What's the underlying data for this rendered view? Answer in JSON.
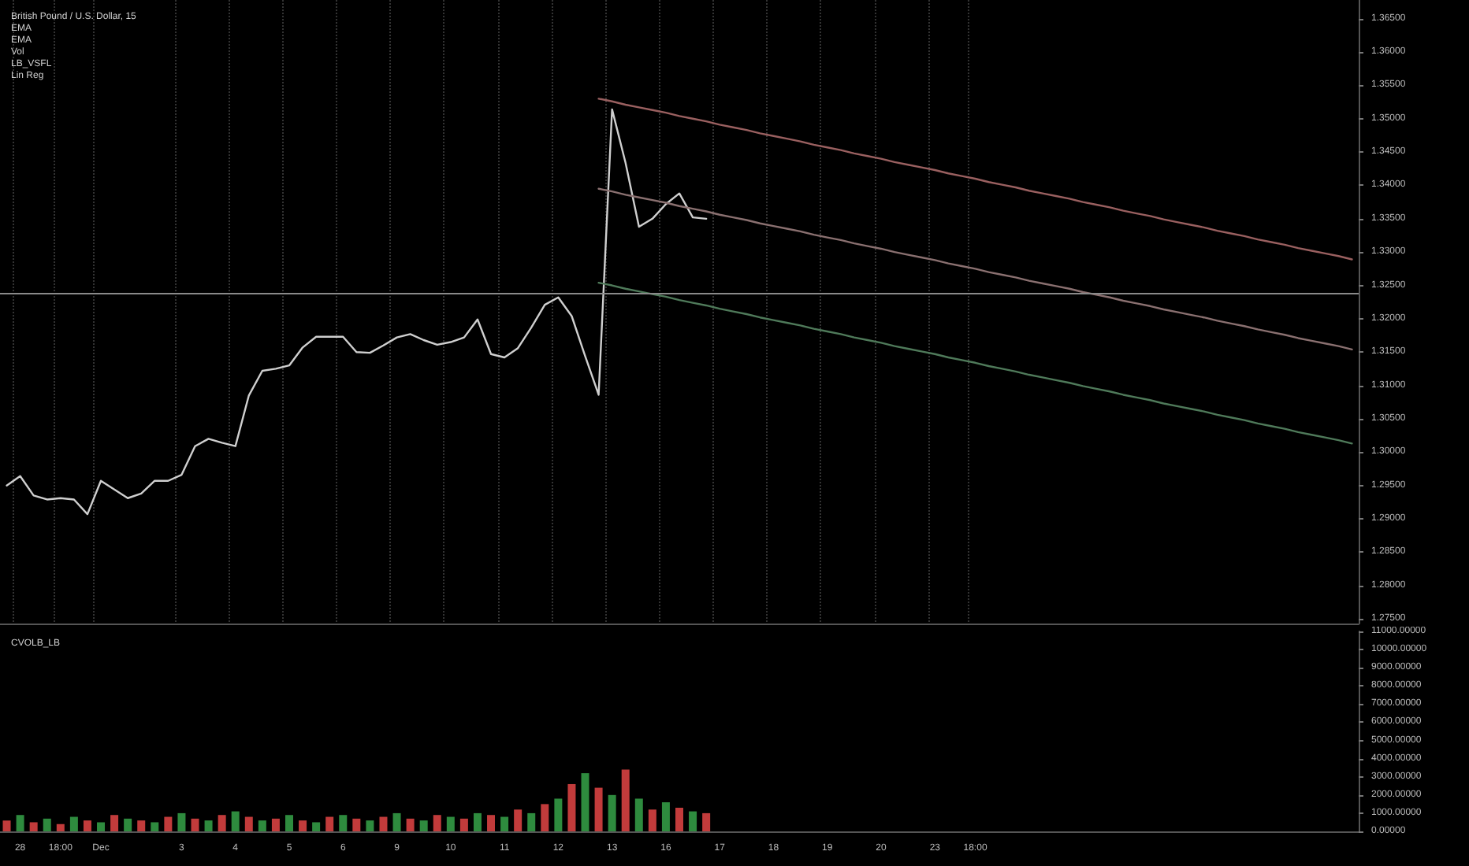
{
  "chart_data": [
    {
      "type": "line",
      "title": "British Pound / U.S. Dollar, 15",
      "annotations": [
        "EMA",
        "EMA",
        "Vol",
        "LB_VSFL",
        "Lin Reg"
      ],
      "categories": [
        null,
        null,
        null,
        null,
        null,
        null,
        null,
        null,
        null,
        null,
        null,
        null,
        null,
        null,
        null,
        null,
        null,
        null,
        null,
        null,
        null,
        null,
        null,
        null,
        null,
        null,
        null,
        null,
        null,
        null,
        null,
        null,
        null,
        null,
        null,
        null,
        null,
        null,
        null,
        null,
        null,
        null,
        null,
        null,
        null,
        null,
        null,
        null,
        null,
        null,
        null,
        null,
        null,
        null,
        null,
        null,
        null,
        null,
        null,
        null,
        null,
        null,
        null,
        null,
        null,
        null,
        null,
        null,
        null,
        null,
        null,
        null,
        null,
        null,
        null,
        null,
        null,
        null,
        null,
        null,
        null,
        null,
        null,
        null,
        null,
        null,
        null,
        null,
        null,
        null,
        null,
        null,
        null,
        null,
        null,
        null,
        null,
        null,
        null,
        null,
        null
      ],
      "ylim": [
        1.2743,
        1.3678
      ],
      "yticks": [
        {
          "value": 1.275,
          "label": "1.27500"
        },
        {
          "value": 1.28,
          "label": "1.28000"
        },
        {
          "value": 1.285,
          "label": "1.28500"
        },
        {
          "value": 1.29,
          "label": "1.29000"
        },
        {
          "value": 1.295,
          "label": "1.29500"
        },
        {
          "value": 1.3,
          "label": "1.30000"
        },
        {
          "value": 1.305,
          "label": "1.30500"
        },
        {
          "value": 1.31,
          "label": "1.31000"
        },
        {
          "value": 1.315,
          "label": "1.31500"
        },
        {
          "value": 1.32,
          "label": "1.32000"
        },
        {
          "value": 1.325,
          "label": "1.32500"
        },
        {
          "value": 1.33,
          "label": "1.33000"
        },
        {
          "value": 1.335,
          "label": "1.33500"
        },
        {
          "value": 1.34,
          "label": "1.34000"
        },
        {
          "value": 1.345,
          "label": "1.34500"
        },
        {
          "value": 1.35,
          "label": "1.35000"
        },
        {
          "value": 1.355,
          "label": "1.35500"
        },
        {
          "value": 1.36,
          "label": "1.36000"
        },
        {
          "value": 1.365,
          "label": "1.36500"
        }
      ],
      "tick_labels": "y",
      "grid": "x",
      "legend": false,
      "line_style": "solid",
      "ref_lines": [
        {
          "axis": "y",
          "value": 1.3239,
          "color": "#8a8a8a"
        }
      ],
      "series": [
        {
          "color": "#cfcfcf",
          "values": [
            1.295,
            1.2964,
            1.2935,
            1.2929,
            1.2931,
            1.2929,
            1.2907,
            1.2957,
            1.2944,
            1.2931,
            1.2938,
            1.2957,
            1.2957,
            1.2966,
            1.3009,
            1.302,
            1.3014,
            1.3009,
            1.3085,
            1.3122,
            1.3125,
            1.313,
            1.3157,
            1.3173,
            1.3173,
            1.3173,
            1.315,
            1.3149,
            1.316,
            1.3172,
            1.3177,
            1.3168,
            1.3161,
            1.3165,
            1.3172,
            1.3199,
            1.3147,
            1.3142,
            1.3156,
            1.3187,
            1.3221,
            1.3232,
            1.3204,
            1.3144,
            1.3086,
            1.3514,
            1.3434,
            1.3338,
            1.335,
            1.3372,
            1.3388,
            1.3352,
            1.335,
            null,
            null,
            null,
            null,
            null,
            null,
            null,
            null,
            null,
            null,
            null,
            null,
            null,
            null,
            null,
            null,
            null,
            null,
            null,
            null,
            null,
            null,
            null,
            null,
            null,
            null,
            null,
            null,
            null,
            null,
            null,
            null,
            null,
            null,
            null,
            null,
            null,
            null,
            null,
            null,
            null,
            null,
            null,
            null,
            null,
            null,
            null,
            null
          ]
        },
        {
          "color": "#9a6060",
          "values": [
            null,
            null,
            null,
            null,
            null,
            null,
            null,
            null,
            null,
            null,
            null,
            null,
            null,
            null,
            null,
            null,
            null,
            null,
            null,
            null,
            null,
            null,
            null,
            null,
            null,
            null,
            null,
            null,
            null,
            null,
            null,
            null,
            null,
            null,
            null,
            null,
            null,
            null,
            null,
            null,
            null,
            null,
            null,
            null,
            1.353,
            1.3526,
            1.3521,
            1.3517,
            1.3513,
            1.3509,
            1.3504,
            1.35,
            1.3496,
            1.3491,
            1.3487,
            1.3483,
            1.3478,
            1.3474,
            1.347,
            1.3466,
            1.3461,
            1.3457,
            1.3453,
            1.3448,
            1.3444,
            1.344,
            1.3435,
            1.3431,
            1.3427,
            1.3423,
            1.3418,
            1.3414,
            1.341,
            1.3405,
            1.3401,
            1.3397,
            1.3392,
            1.3388,
            1.3384,
            1.338,
            1.3375,
            1.3371,
            1.3367,
            1.3362,
            1.3358,
            1.3354,
            1.3349,
            1.3345,
            1.3341,
            1.3337,
            1.3332,
            1.3328,
            1.3324,
            1.3319,
            1.3315,
            1.3311,
            1.3306,
            1.3302,
            1.3298,
            1.3294,
            1.3289
          ]
        },
        {
          "color": "#8a7070",
          "values": [
            null,
            null,
            null,
            null,
            null,
            null,
            null,
            null,
            null,
            null,
            null,
            null,
            null,
            null,
            null,
            null,
            null,
            null,
            null,
            null,
            null,
            null,
            null,
            null,
            null,
            null,
            null,
            null,
            null,
            null,
            null,
            null,
            null,
            null,
            null,
            null,
            null,
            null,
            null,
            null,
            null,
            null,
            null,
            null,
            1.3395,
            1.3391,
            1.3386,
            1.3382,
            1.3378,
            1.3374,
            1.3369,
            1.3365,
            1.3361,
            1.3356,
            1.3352,
            1.3348,
            1.3343,
            1.3339,
            1.3335,
            1.3331,
            1.3326,
            1.3322,
            1.3318,
            1.3313,
            1.3309,
            1.3305,
            1.33,
            1.3296,
            1.3292,
            1.3288,
            1.3283,
            1.3279,
            1.3275,
            1.327,
            1.3266,
            1.3262,
            1.3257,
            1.3253,
            1.3249,
            1.3245,
            1.324,
            1.3236,
            1.3232,
            1.3227,
            1.3223,
            1.3219,
            1.3214,
            1.321,
            1.3206,
            1.3202,
            1.3197,
            1.3193,
            1.3189,
            1.3184,
            1.318,
            1.3176,
            1.3171,
            1.3167,
            1.3163,
            1.3159,
            1.3154
          ]
        },
        {
          "color": "#4f7a5a",
          "values": [
            null,
            null,
            null,
            null,
            null,
            null,
            null,
            null,
            null,
            null,
            null,
            null,
            null,
            null,
            null,
            null,
            null,
            null,
            null,
            null,
            null,
            null,
            null,
            null,
            null,
            null,
            null,
            null,
            null,
            null,
            null,
            null,
            null,
            null,
            null,
            null,
            null,
            null,
            null,
            null,
            null,
            null,
            null,
            null,
            1.3254,
            1.325,
            1.3245,
            1.3241,
            1.3237,
            1.3233,
            1.3228,
            1.3224,
            1.322,
            1.3215,
            1.3211,
            1.3207,
            1.3202,
            1.3198,
            1.3194,
            1.319,
            1.3185,
            1.3181,
            1.3177,
            1.3172,
            1.3168,
            1.3164,
            1.3159,
            1.3155,
            1.3151,
            1.3147,
            1.3142,
            1.3138,
            1.3134,
            1.3129,
            1.3125,
            1.3121,
            1.3116,
            1.3112,
            1.3108,
            1.3104,
            1.3099,
            1.3095,
            1.3091,
            1.3086,
            1.3082,
            1.3078,
            1.3073,
            1.3069,
            1.3065,
            1.3061,
            1.3056,
            1.3052,
            1.3048,
            1.3043,
            1.3039,
            1.3035,
            1.303,
            1.3026,
            1.3022,
            1.3018,
            1.3013
          ]
        }
      ]
    },
    {
      "type": "bar",
      "title": "CVOLB_LB",
      "categories": [
        null,
        "28",
        null,
        null,
        "18:00",
        null,
        null,
        "Dec",
        null,
        null,
        null,
        null,
        null,
        "3",
        null,
        null,
        null,
        "4",
        null,
        null,
        null,
        "5",
        null,
        null,
        null,
        "6",
        null,
        null,
        null,
        "9",
        null,
        null,
        null,
        "10",
        null,
        null,
        null,
        "11",
        null,
        null,
        null,
        "12",
        null,
        null,
        null,
        "13",
        null,
        null,
        null,
        "16",
        null,
        null,
        null,
        "17",
        null,
        null,
        null,
        "18",
        null,
        null,
        null,
        "19",
        null,
        null,
        null,
        "20",
        null,
        null,
        null,
        "23",
        null,
        null,
        "18:00",
        null,
        null,
        null,
        null,
        null,
        null,
        null,
        null,
        null,
        null,
        null,
        null,
        null,
        null,
        null,
        null,
        null,
        null,
        null,
        null,
        null,
        null,
        null,
        null,
        null,
        null,
        null,
        null
      ],
      "ylim": [
        0,
        11000
      ],
      "yticks": [
        {
          "value": 0,
          "label": "0.00000"
        },
        {
          "value": 1000,
          "label": "1000.00000"
        },
        {
          "value": 2000,
          "label": "2000.00000"
        },
        {
          "value": 3000,
          "label": "3000.00000"
        },
        {
          "value": 4000,
          "label": "4000.00000"
        },
        {
          "value": 5000,
          "label": "5000.00000"
        },
        {
          "value": 6000,
          "label": "6000.00000"
        },
        {
          "value": 7000,
          "label": "7000.00000"
        },
        {
          "value": 8000,
          "label": "8000.00000"
        },
        {
          "value": 9000,
          "label": "9000.00000"
        },
        {
          "value": 10000,
          "label": "10000.00000"
        },
        {
          "value": 11000,
          "label": "11000.00000"
        }
      ],
      "grid": false,
      "legend": false,
      "values": [
        600,
        900,
        500,
        700,
        400,
        800,
        600,
        500,
        900,
        700,
        600,
        500,
        800,
        1000,
        700,
        600,
        900,
        1100,
        800,
        600,
        700,
        900,
        600,
        500,
        800,
        900,
        700,
        600,
        800,
        1000,
        700,
        600,
        900,
        800,
        700,
        1000,
        900,
        800,
        1200,
        1000,
        1500,
        1800,
        2600,
        3200,
        2400,
        2000,
        3400,
        1800,
        1200,
        1600,
        1300,
        1100,
        1000,
        null,
        null,
        null,
        null,
        null,
        null,
        null,
        null,
        null,
        null,
        null,
        null,
        null,
        null,
        null,
        null,
        null,
        null,
        null,
        null,
        null,
        null,
        null,
        null,
        null,
        null,
        null,
        null,
        null,
        null,
        null,
        null,
        null,
        null,
        null,
        null,
        null,
        null,
        null,
        null,
        null,
        null,
        null,
        null,
        null,
        null,
        null,
        null
      ],
      "colors": [
        "#c23b3b",
        "#2e8b3e",
        "#c23b3b",
        "#2e8b3e",
        "#c23b3b",
        "#2e8b3e",
        "#c23b3b",
        "#2e8b3e",
        "#c23b3b",
        "#2e8b3e",
        "#c23b3b",
        "#2e8b3e",
        "#c23b3b",
        "#2e8b3e",
        "#c23b3b",
        "#2e8b3e",
        "#c23b3b",
        "#2e8b3e",
        "#c23b3b",
        "#2e8b3e",
        "#c23b3b",
        "#2e8b3e",
        "#c23b3b",
        "#2e8b3e",
        "#c23b3b",
        "#2e8b3e",
        "#c23b3b",
        "#2e8b3e",
        "#c23b3b",
        "#2e8b3e",
        "#c23b3b",
        "#2e8b3e",
        "#c23b3b",
        "#2e8b3e",
        "#c23b3b",
        "#2e8b3e",
        "#c23b3b",
        "#2e8b3e",
        "#c23b3b",
        "#2e8b3e",
        "#c23b3b",
        "#2e8b3e",
        "#c23b3b",
        "#2e8b3e",
        "#c23b3b",
        "#2e8b3e",
        "#c23b3b",
        "#2e8b3e",
        "#c23b3b",
        "#2e8b3e",
        "#c23b3b",
        "#2e8b3e",
        "#c23b3b",
        null,
        null,
        null,
        null,
        null,
        null,
        null,
        null,
        null,
        null,
        null,
        null,
        null,
        null,
        null,
        null,
        null,
        null,
        null,
        null,
        null,
        null,
        null,
        null,
        null,
        null,
        null,
        null,
        null,
        null,
        null,
        null,
        null,
        null,
        null,
        null,
        null,
        null,
        null,
        null,
        null,
        null,
        null,
        null,
        null,
        null,
        null,
        null
      ]
    }
  ]
}
